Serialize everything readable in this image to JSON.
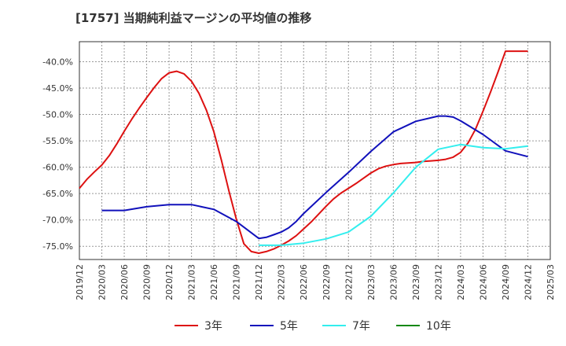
{
  "chart_data": {
    "type": "line",
    "title": "[1757]  当期純利益マージンの平均値の推移",
    "xlabel": "",
    "ylabel": "",
    "x_ticks": [
      "2019/12",
      "2020/03",
      "2020/06",
      "2020/09",
      "2020/12",
      "2021/03",
      "2021/06",
      "2021/09",
      "2021/12",
      "2022/03",
      "2022/06",
      "2022/09",
      "2022/12",
      "2023/03",
      "2023/06",
      "2023/09",
      "2023/12",
      "2024/03",
      "2024/06",
      "2024/09",
      "2024/12",
      "2025/03"
    ],
    "y_ticks": [
      "-40.0%",
      "-45.0%",
      "-50.0%",
      "-55.0%",
      "-60.0%",
      "-65.0%",
      "-70.0%",
      "-75.0%"
    ],
    "y_tick_values": [
      -40,
      -45,
      -50,
      -55,
      -60,
      -65,
      -70,
      -75
    ],
    "ylim": [
      -77.5,
      -36.2
    ],
    "grid": true,
    "legend_position": "bottom",
    "series": [
      {
        "name": "3年",
        "color": "#dd1111",
        "x": [
          "2019/12",
          "2020/01",
          "2020/02",
          "2020/03",
          "2020/04",
          "2020/05",
          "2020/06",
          "2020/07",
          "2020/08",
          "2020/09",
          "2020/10",
          "2020/11",
          "2020/12",
          "2021/01",
          "2021/02",
          "2021/03",
          "2021/04",
          "2021/05",
          "2021/06",
          "2021/07",
          "2021/08",
          "2021/09",
          "2021/10",
          "2021/11",
          "2021/12",
          "2022/01",
          "2022/02",
          "2022/03",
          "2022/04",
          "2022/05",
          "2022/06",
          "2022/07",
          "2022/08",
          "2022/09",
          "2022/10",
          "2022/11",
          "2022/12",
          "2023/01",
          "2023/02",
          "2023/03",
          "2023/04",
          "2023/05",
          "2023/06",
          "2023/07",
          "2023/08",
          "2023/09",
          "2023/10",
          "2023/11",
          "2023/12",
          "2024/01",
          "2024/02",
          "2024/03",
          "2024/04",
          "2024/05",
          "2024/06",
          "2024/07",
          "2024/08",
          "2024/09",
          "2024/10",
          "2024/11",
          "2024/12"
        ],
        "values": [
          -64.0,
          -62.3,
          -60.9,
          -59.6,
          -57.8,
          -55.6,
          -53.2,
          -50.9,
          -48.8,
          -46.8,
          -44.9,
          -43.2,
          -42.1,
          -41.8,
          -42.3,
          -43.7,
          -46.0,
          -49.2,
          -53.3,
          -58.7,
          -64.5,
          -69.9,
          -74.5,
          -76.0,
          -76.3,
          -76.0,
          -75.5,
          -74.8,
          -74.0,
          -73.0,
          -71.7,
          -70.4,
          -68.9,
          -67.4,
          -66.0,
          -64.9,
          -64.0,
          -63.1,
          -62.1,
          -61.1,
          -60.3,
          -59.8,
          -59.5,
          -59.3,
          -59.2,
          -59.1,
          -58.9,
          -58.8,
          -58.7,
          -58.5,
          -58.1,
          -57.2,
          -55.4,
          -52.8,
          -49.4,
          -45.8,
          -42.0,
          -38.0,
          -38.0,
          -38.0,
          -38.0
        ]
      },
      {
        "name": "5年",
        "color": "#1111bb",
        "x": [
          "2020/03",
          "2020/06",
          "2020/09",
          "2020/12",
          "2021/03",
          "2021/06",
          "2021/09",
          "2021/12",
          "2022/01",
          "2022/02",
          "2022/03",
          "2022/04",
          "2022/05",
          "2022/06",
          "2022/09",
          "2022/12",
          "2023/03",
          "2023/06",
          "2023/09",
          "2023/12",
          "2024/01",
          "2024/02",
          "2024/03",
          "2024/06",
          "2024/09",
          "2024/12"
        ],
        "values": [
          -68.2,
          -68.2,
          -67.5,
          -67.1,
          -67.1,
          -68.0,
          -70.3,
          -73.5,
          -73.3,
          -72.8,
          -72.3,
          -71.5,
          -70.3,
          -68.8,
          -64.8,
          -61.0,
          -57.0,
          -53.3,
          -51.3,
          -50.3,
          -50.3,
          -50.5,
          -51.2,
          -53.8,
          -56.9,
          -58.0
        ]
      },
      {
        "name": "7年",
        "color": "#33eeee",
        "x": [
          "2021/12",
          "2022/03",
          "2022/06",
          "2022/09",
          "2022/12",
          "2023/03",
          "2023/06",
          "2023/09",
          "2023/12",
          "2024/03",
          "2024/06",
          "2024/09",
          "2024/12"
        ],
        "values": [
          -74.8,
          -74.8,
          -74.4,
          -73.6,
          -72.3,
          -69.3,
          -64.9,
          -60.0,
          -56.6,
          -55.7,
          -56.3,
          -56.5,
          -56.0
        ]
      },
      {
        "name": "10年",
        "color": "#118811",
        "x": [],
        "values": []
      }
    ]
  }
}
